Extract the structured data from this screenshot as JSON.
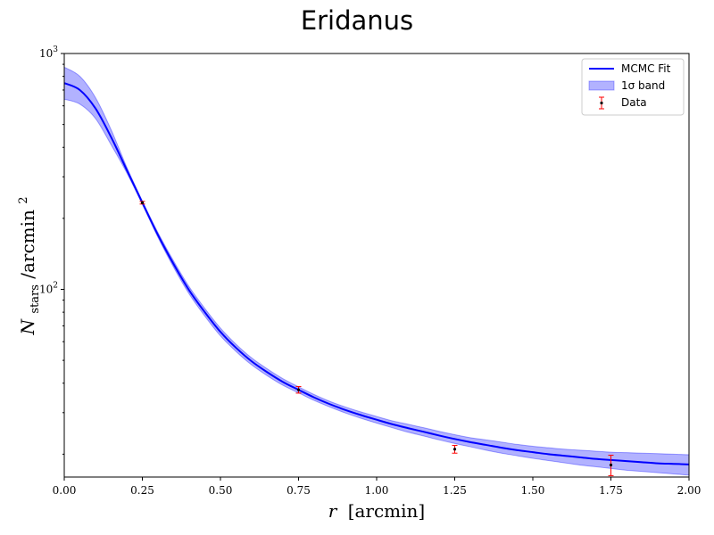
{
  "chart_data": {
    "type": "line",
    "title": "Eridanus",
    "xlabel_var": "r",
    "xlabel_unit": "[arcmin]",
    "ylabel_main": "N",
    "ylabel_sub": "stars",
    "ylabel_rest": "/arcmin",
    "ylabel_sup": "2",
    "xlim": [
      0.0,
      2.0
    ],
    "ylim": [
      16,
      1000
    ],
    "y_scale": "log",
    "x_ticks": [
      "0.00",
      "0.25",
      "0.50",
      "0.75",
      "1.00",
      "1.25",
      "1.50",
      "1.75",
      "2.00"
    ],
    "y_major_ticks": [
      {
        "value": 100,
        "base": "10",
        "exp": "2"
      },
      {
        "value": 1000,
        "base": "10",
        "exp": "3"
      }
    ],
    "grid": false,
    "legend_position": "top-right",
    "model": {
      "name": "MCMC Fit",
      "color": "#0000ff",
      "x": [
        0.0,
        0.05,
        0.1,
        0.15,
        0.2,
        0.25,
        0.3,
        0.35,
        0.4,
        0.45,
        0.5,
        0.55,
        0.6,
        0.65,
        0.7,
        0.75,
        0.8,
        0.85,
        0.9,
        0.95,
        1.0,
        1.05,
        1.1,
        1.15,
        1.2,
        1.25,
        1.3,
        1.35,
        1.4,
        1.45,
        1.5,
        1.55,
        1.6,
        1.65,
        1.7,
        1.75,
        1.8,
        1.85,
        1.9,
        1.95,
        2.0
      ],
      "y": [
        749,
        700,
        585,
        442,
        321,
        233,
        170,
        128,
        99,
        80,
        66,
        56.5,
        49.5,
        44.5,
        40.5,
        37.5,
        34.8,
        32.6,
        30.8,
        29.3,
        28.0,
        26.8,
        25.8,
        24.9,
        24.0,
        23.2,
        22.5,
        21.9,
        21.3,
        20.8,
        20.4,
        20.0,
        19.7,
        19.4,
        19.1,
        18.9,
        18.7,
        18.5,
        18.3,
        18.2,
        18.1
      ]
    },
    "band": {
      "name": "1σ band",
      "color": "#0000ff",
      "opacity": 0.3,
      "x": [
        0.0,
        0.05,
        0.1,
        0.15,
        0.2,
        0.25,
        0.3,
        0.35,
        0.4,
        0.45,
        0.5,
        0.55,
        0.6,
        0.65,
        0.7,
        0.75,
        0.8,
        0.85,
        0.9,
        0.95,
        1.0,
        1.05,
        1.1,
        1.15,
        1.2,
        1.25,
        1.3,
        1.35,
        1.4,
        1.45,
        1.5,
        1.55,
        1.6,
        1.65,
        1.7,
        1.75,
        1.8,
        1.85,
        1.9,
        1.95,
        2.0
      ],
      "lower": [
        640,
        610,
        530,
        410,
        312,
        229,
        166,
        124,
        95.5,
        77,
        63.5,
        54.5,
        47.8,
        43.0,
        39.2,
        36.4,
        33.8,
        31.7,
        29.9,
        28.4,
        27.1,
        25.9,
        24.8,
        23.9,
        23.0,
        22.2,
        21.5,
        20.8,
        20.2,
        19.7,
        19.2,
        18.8,
        18.4,
        18.0,
        17.7,
        17.4,
        17.1,
        16.9,
        16.7,
        16.5,
        16.3
      ],
      "upper": [
        875,
        800,
        650,
        475,
        330,
        237,
        174,
        132,
        102.5,
        83,
        68.5,
        58.5,
        51.2,
        46.0,
        41.8,
        38.6,
        35.8,
        33.5,
        31.7,
        30.2,
        28.9,
        27.7,
        26.8,
        25.9,
        25.0,
        24.2,
        23.5,
        23.0,
        22.5,
        22.0,
        21.6,
        21.3,
        21.0,
        20.8,
        20.6,
        20.4,
        20.3,
        20.2,
        20.1,
        20.0,
        19.9
      ]
    },
    "data_points": {
      "name": "Data",
      "marker_color": "#000000",
      "error_color": "#ff0000",
      "x": [
        0.25,
        0.75,
        1.25,
        1.75
      ],
      "y": [
        233,
        37.5,
        21.0,
        18.0
      ],
      "y_low": [
        230,
        36.3,
        20.2,
        16.2
      ],
      "y_high": [
        236,
        38.7,
        21.8,
        19.8
      ]
    }
  }
}
